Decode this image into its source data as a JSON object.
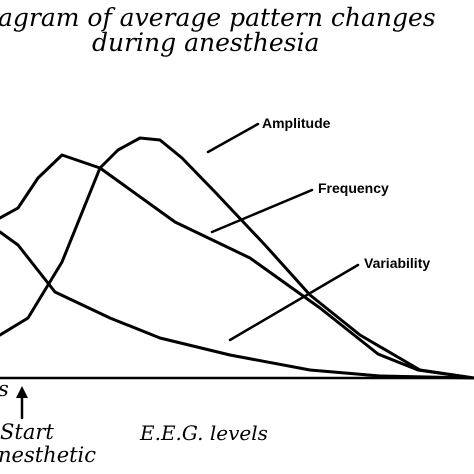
{
  "title": {
    "line1": "agram of average pattern changes",
    "line2": "during anesthesia"
  },
  "curve_labels": {
    "amplitude": "Amplitude",
    "frequency": "Frequency",
    "variability": "Variability"
  },
  "x_axis": {
    "label": "E.E.G. levels",
    "left_fragment": "s",
    "start_label": "Start",
    "anesthetic_fragment": "nesthetic"
  }
}
